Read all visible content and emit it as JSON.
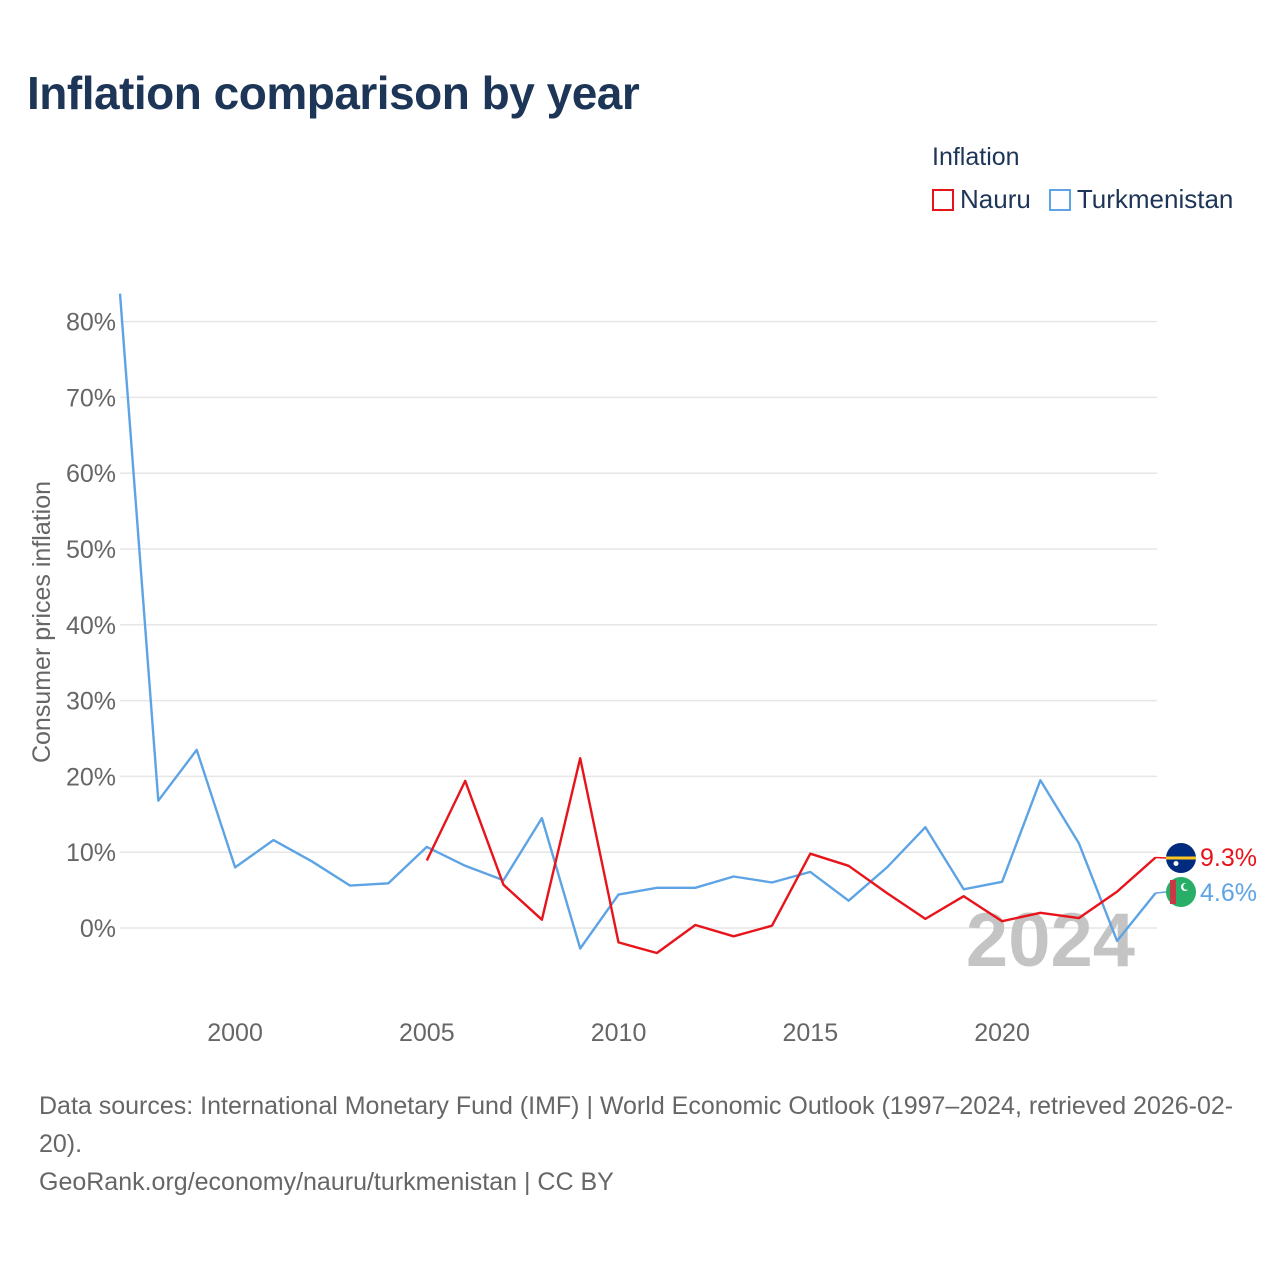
{
  "title": "Inflation comparison by year",
  "legend": {
    "title": "Inflation",
    "items": [
      {
        "label": "Nauru",
        "color": "#e8141b"
      },
      {
        "label": "Turkmenistan",
        "color": "#5ea4e4"
      }
    ]
  },
  "chart_data": {
    "type": "line",
    "title": "Inflation comparison by year",
    "ylabel": "Consumer prices inflation",
    "xlabel": "",
    "xlim": [
      1997,
      2024
    ],
    "ylim": [
      -10,
      85
    ],
    "x_ticks": [
      2000,
      2005,
      2010,
      2015,
      2020
    ],
    "y_ticks": [
      0,
      10,
      20,
      30,
      40,
      50,
      60,
      70,
      80
    ],
    "y_tick_labels": [
      "0%",
      "10%",
      "20%",
      "30%",
      "40%",
      "50%",
      "60%",
      "70%",
      "80%"
    ],
    "grid": true,
    "watermark_year": "2024",
    "series": [
      {
        "name": "Nauru",
        "color": "#e8141b",
        "x": [
          2005,
          2006,
          2007,
          2008,
          2009,
          2010,
          2011,
          2012,
          2013,
          2014,
          2015,
          2016,
          2017,
          2018,
          2019,
          2020,
          2021,
          2022,
          2023,
          2024
        ],
        "values": [
          8.9,
          19.4,
          5.7,
          1.1,
          22.4,
          -1.9,
          -3.3,
          0.4,
          -1.1,
          0.3,
          9.8,
          8.2,
          4.6,
          1.2,
          4.2,
          0.9,
          2.0,
          1.3,
          4.8,
          9.3
        ],
        "end_label": "9.3%",
        "flag": "nauru-flag"
      },
      {
        "name": "Turkmenistan",
        "color": "#5ea4e4",
        "x": [
          1997,
          1998,
          1999,
          2000,
          2001,
          2002,
          2003,
          2004,
          2005,
          2006,
          2007,
          2008,
          2009,
          2010,
          2011,
          2012,
          2013,
          2014,
          2015,
          2016,
          2017,
          2018,
          2019,
          2020,
          2021,
          2022,
          2023,
          2024
        ],
        "values": [
          83.7,
          16.8,
          23.5,
          8.0,
          11.6,
          8.8,
          5.6,
          5.9,
          10.7,
          8.2,
          6.3,
          14.5,
          -2.7,
          4.4,
          5.3,
          5.3,
          6.8,
          6.0,
          7.4,
          3.6,
          8.0,
          13.3,
          5.1,
          6.1,
          19.5,
          11.2,
          -1.7,
          4.6
        ],
        "end_label": "4.6%",
        "flag": "turkmenistan-flag"
      }
    ]
  },
  "footer": {
    "sources": "Data sources: International Monetary Fund (IMF) | World Economic Outlook (1997–2024, retrieved 2026-02-20).",
    "credit": "GeoRank.org/economy/nauru/turkmenistan | CC BY"
  }
}
